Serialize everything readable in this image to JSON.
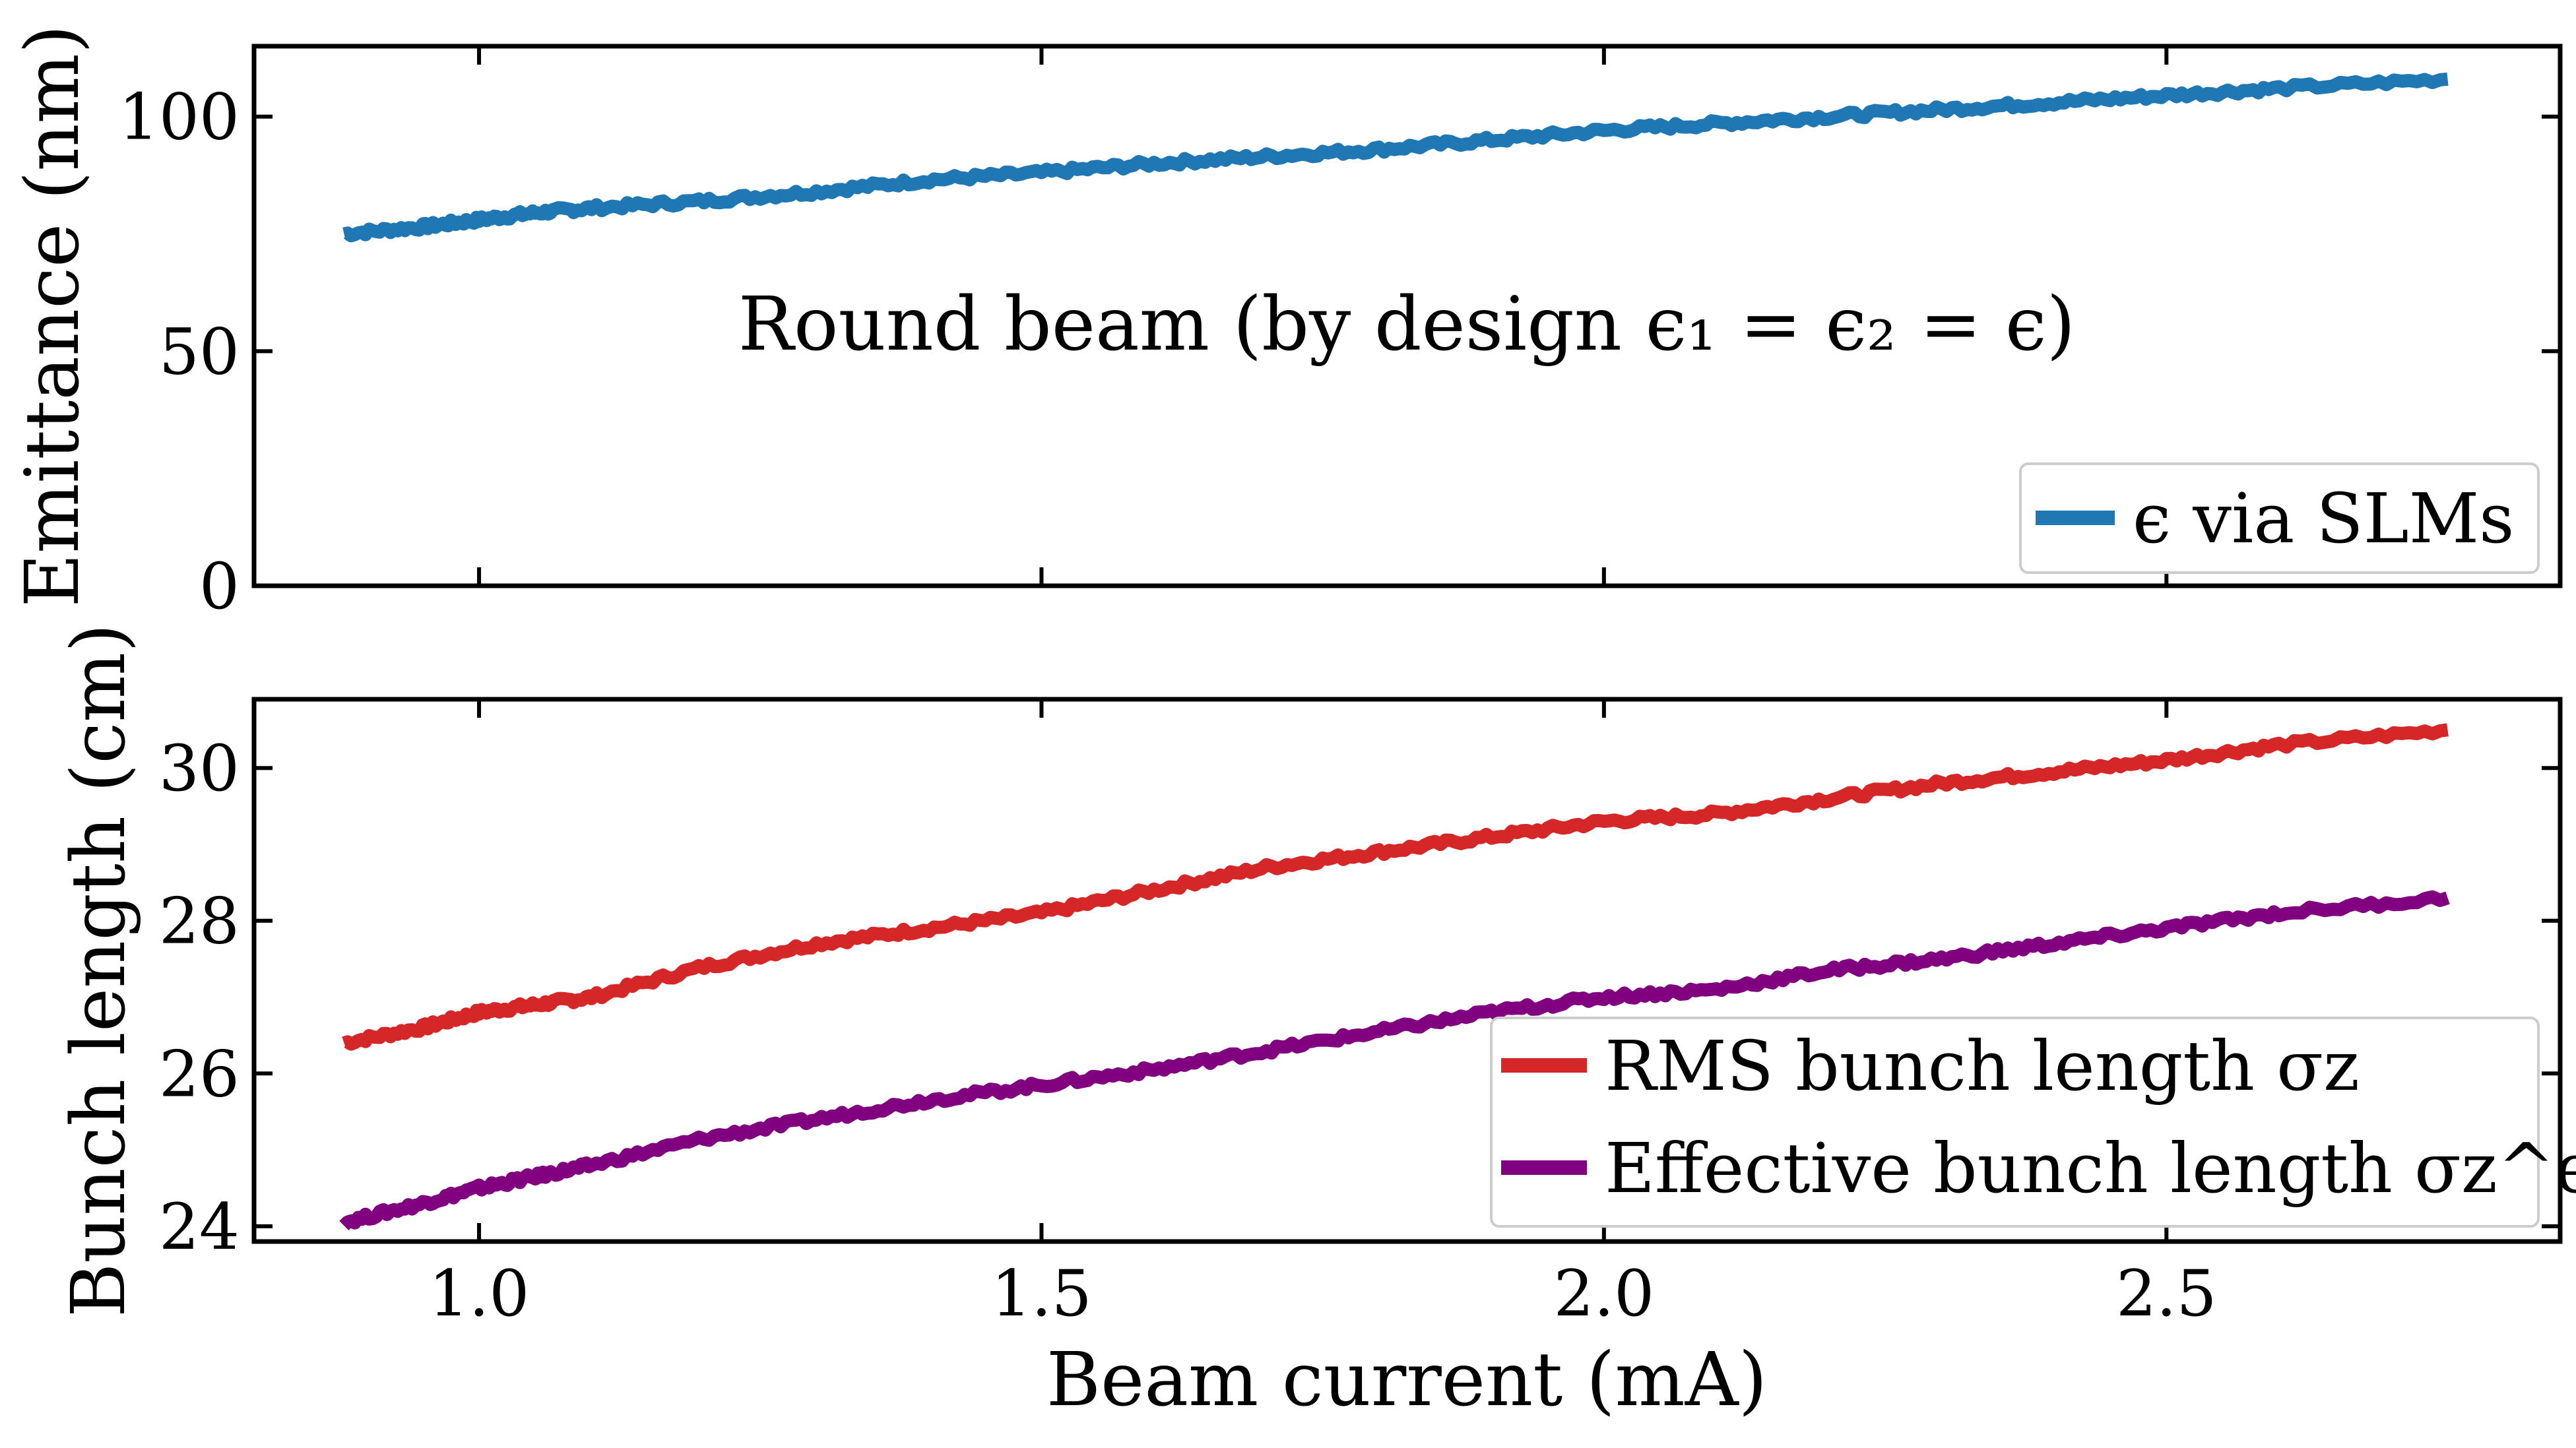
{
  "figure": {
    "xlabel": "Beam current (mA)"
  },
  "chart_data": [
    {
      "type": "line",
      "title": "",
      "xlabel": "Beam current (mA)",
      "ylabel": "Emittance (nm)",
      "xlim": [
        0.8,
        2.85
      ],
      "ylim": [
        0,
        115
      ],
      "xticks": [
        1.0,
        1.5,
        2.0,
        2.5
      ],
      "xtick_labels": [
        "1.0",
        "1.5",
        "2.0",
        "2.5"
      ],
      "yticks": [
        0,
        50,
        100
      ],
      "ytick_labels": [
        "0",
        "50",
        "100"
      ],
      "annotation": "Round beam (by design ϵ₁ = ϵ₂ = ϵ)",
      "legend_position": "lower-right",
      "x": [
        0.88,
        0.95,
        1.0,
        1.05,
        1.1,
        1.2,
        1.3,
        1.4,
        1.5,
        1.6,
        1.7,
        1.8,
        1.9,
        2.0,
        2.1,
        2.2,
        2.3,
        2.4,
        2.5,
        2.6,
        2.75
      ],
      "series": [
        {
          "name": "ϵ via SLMs",
          "color": "#1f77b4",
          "values": [
            75,
            76.5,
            78,
            79.5,
            80.5,
            82,
            84,
            86.5,
            88,
            90,
            91.5,
            93,
            95,
            97,
            98.5,
            100,
            101.5,
            103,
            104.5,
            106,
            108
          ]
        }
      ]
    },
    {
      "type": "line",
      "title": "",
      "xlabel": "Beam current (mA)",
      "ylabel": "Bunch length (cm)",
      "xlim": [
        0.8,
        2.85
      ],
      "ylim": [
        23.8,
        30.9
      ],
      "xticks": [
        1.0,
        1.5,
        2.0,
        2.5
      ],
      "xtick_labels": [
        "1.0",
        "1.5",
        "2.0",
        "2.5"
      ],
      "yticks": [
        24,
        26,
        28,
        30
      ],
      "ytick_labels": [
        "24",
        "26",
        "28",
        "30"
      ],
      "legend_position": "lower-right",
      "x": [
        0.88,
        0.95,
        1.0,
        1.05,
        1.1,
        1.2,
        1.3,
        1.4,
        1.5,
        1.6,
        1.7,
        1.8,
        1.9,
        2.0,
        2.1,
        2.2,
        2.3,
        2.4,
        2.5,
        2.6,
        2.75
      ],
      "series": [
        {
          "name": "RMS bunch length σz",
          "color": "#d62728",
          "values": [
            26.4,
            26.6,
            26.8,
            26.9,
            27.0,
            27.4,
            27.7,
            27.9,
            28.1,
            28.4,
            28.7,
            28.9,
            29.1,
            29.3,
            29.4,
            29.6,
            29.8,
            29.95,
            30.1,
            30.3,
            30.5
          ]
        },
        {
          "name": "Effective bunch length σz^eff",
          "color": "#800080",
          "values": [
            24.05,
            24.3,
            24.5,
            24.65,
            24.8,
            25.15,
            25.4,
            25.65,
            25.85,
            26.05,
            26.3,
            26.55,
            26.8,
            27.0,
            27.1,
            27.35,
            27.5,
            27.7,
            27.9,
            28.1,
            28.3
          ]
        }
      ]
    }
  ]
}
